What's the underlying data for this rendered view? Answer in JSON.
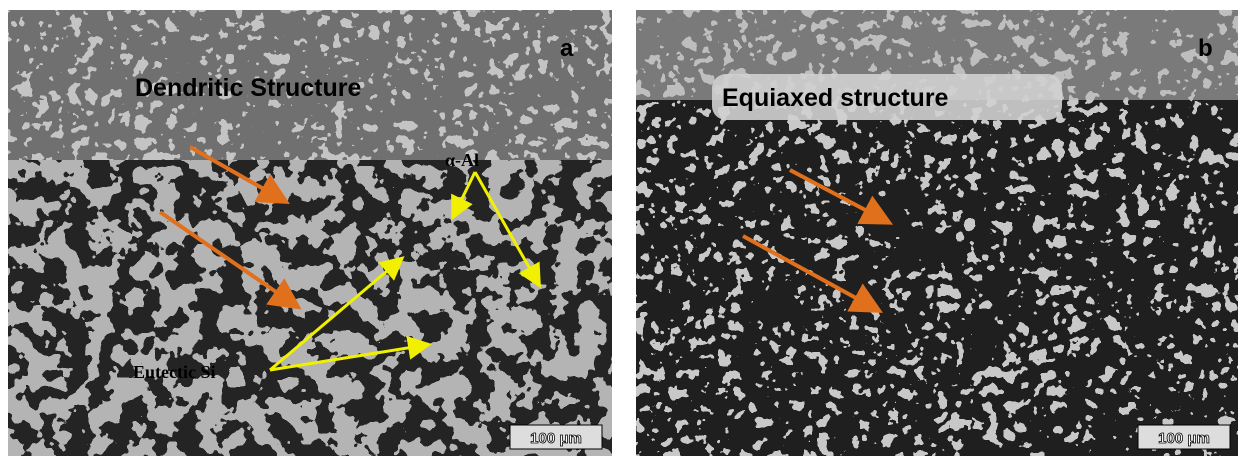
{
  "panels": [
    {
      "label": "a",
      "title": "Dendritic Structure",
      "annotations": [
        "α-Al",
        "Eutectic Si"
      ],
      "scale_bar": "100 μm"
    },
    {
      "label": "b",
      "title": "Equiaxed structure",
      "scale_bar": "100 μm"
    }
  ]
}
